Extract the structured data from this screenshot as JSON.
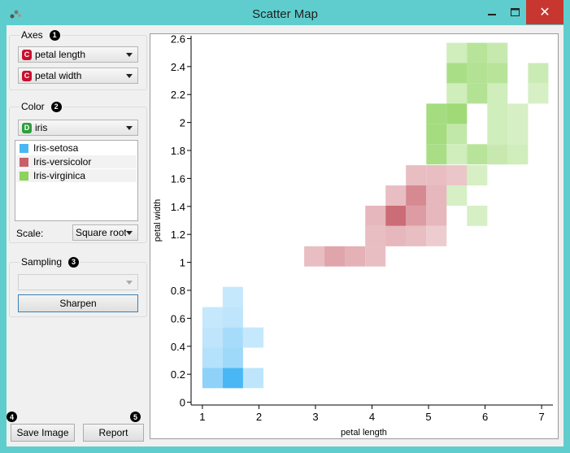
{
  "window": {
    "title": "Scatter Map",
    "close_glyph": "✕"
  },
  "axes": {
    "title": "Axes",
    "badge": "1",
    "x_attr": "petal length",
    "y_attr": "petal width",
    "x_type": "C",
    "y_type": "C",
    "type_color": "#c8102e"
  },
  "color": {
    "title": "Color",
    "badge": "2",
    "attr": "iris",
    "attr_type": "D",
    "type_color": "#2e9e3a",
    "classes": [
      {
        "label": "Iris-setosa",
        "color": "#4ab7f5"
      },
      {
        "label": "Iris-versicolor",
        "color": "#c8606a"
      },
      {
        "label": "Iris-virginica",
        "color": "#8cd35c"
      }
    ],
    "scale_label": "Scale:",
    "scale_value": "Square root"
  },
  "sampling": {
    "title": "Sampling",
    "badge": "3",
    "value": "",
    "sharpen_label": "Sharpen"
  },
  "footer": {
    "badge_save": "4",
    "badge_report": "5",
    "save_label": "Save Image",
    "report_label": "Report"
  },
  "chart_data": {
    "type": "heatmap",
    "xlabel": "petal length",
    "ylabel": "petal width",
    "xlim": [
      0.8,
      7.2
    ],
    "ylim": [
      -0.02,
      2.62
    ],
    "xticks": [
      1,
      2,
      3,
      4,
      5,
      6,
      7
    ],
    "yticks": [
      0,
      0.2,
      0.4,
      0.6,
      0.8,
      1,
      1.2,
      1.4,
      1.6,
      1.8,
      2,
      2.2,
      2.4,
      2.6
    ],
    "ytick_labels": [
      "0",
      "0.2",
      "0.4",
      "0.6",
      "0.8",
      "1",
      "1.2",
      "1.4",
      "1.6",
      "1.8",
      "2",
      "2.2",
      "2.4",
      "2.6"
    ],
    "bin_width": 0.36,
    "bin_height": 0.145,
    "bins": [
      {
        "class": "Iris-setosa",
        "x": 1.0,
        "y": 0.1,
        "level": 0.55
      },
      {
        "class": "Iris-setosa",
        "x": 1.36,
        "y": 0.1,
        "level": 1.0
      },
      {
        "class": "Iris-setosa",
        "x": 1.72,
        "y": 0.1,
        "level": 0.25
      },
      {
        "class": "Iris-setosa",
        "x": 1.0,
        "y": 0.245,
        "level": 0.3
      },
      {
        "class": "Iris-setosa",
        "x": 1.36,
        "y": 0.245,
        "level": 0.45
      },
      {
        "class": "Iris-setosa",
        "x": 1.0,
        "y": 0.39,
        "level": 0.25
      },
      {
        "class": "Iris-setosa",
        "x": 1.36,
        "y": 0.39,
        "level": 0.4
      },
      {
        "class": "Iris-setosa",
        "x": 1.72,
        "y": 0.39,
        "level": 0.2
      },
      {
        "class": "Iris-setosa",
        "x": 1.0,
        "y": 0.535,
        "level": 0.2
      },
      {
        "class": "Iris-setosa",
        "x": 1.36,
        "y": 0.535,
        "level": 0.25
      },
      {
        "class": "Iris-setosa",
        "x": 1.36,
        "y": 0.68,
        "level": 0.2
      },
      {
        "class": "Iris-versicolor",
        "x": 2.8,
        "y": 0.97,
        "level": 0.3
      },
      {
        "class": "Iris-versicolor",
        "x": 3.16,
        "y": 0.97,
        "level": 0.5
      },
      {
        "class": "Iris-versicolor",
        "x": 3.52,
        "y": 0.97,
        "level": 0.4
      },
      {
        "class": "Iris-versicolor",
        "x": 3.88,
        "y": 0.97,
        "level": 0.3
      },
      {
        "class": "Iris-versicolor",
        "x": 3.88,
        "y": 1.115,
        "level": 0.3
      },
      {
        "class": "Iris-versicolor",
        "x": 4.24,
        "y": 1.115,
        "level": 0.35
      },
      {
        "class": "Iris-versicolor",
        "x": 4.6,
        "y": 1.115,
        "level": 0.3
      },
      {
        "class": "Iris-versicolor",
        "x": 4.96,
        "y": 1.115,
        "level": 0.2
      },
      {
        "class": "Iris-versicolor",
        "x": 3.88,
        "y": 1.26,
        "level": 0.35
      },
      {
        "class": "Iris-versicolor",
        "x": 4.24,
        "y": 1.26,
        "level": 0.9
      },
      {
        "class": "Iris-versicolor",
        "x": 4.6,
        "y": 1.26,
        "level": 0.55
      },
      {
        "class": "Iris-versicolor",
        "x": 4.96,
        "y": 1.26,
        "level": 0.35
      },
      {
        "class": "Iris-versicolor",
        "x": 4.24,
        "y": 1.405,
        "level": 0.3
      },
      {
        "class": "Iris-versicolor",
        "x": 4.6,
        "y": 1.405,
        "level": 0.7
      },
      {
        "class": "Iris-versicolor",
        "x": 4.96,
        "y": 1.405,
        "level": 0.35
      },
      {
        "class": "Iris-versicolor",
        "x": 4.6,
        "y": 1.55,
        "level": 0.3
      },
      {
        "class": "Iris-versicolor",
        "x": 4.96,
        "y": 1.55,
        "level": 0.3
      },
      {
        "class": "Iris-versicolor",
        "x": 5.32,
        "y": 1.55,
        "level": 0.25
      },
      {
        "class": "Iris-virginica",
        "x": 5.32,
        "y": 1.405,
        "level": 0.25
      },
      {
        "class": "Iris-virginica",
        "x": 5.68,
        "y": 1.26,
        "level": 0.25
      },
      {
        "class": "Iris-virginica",
        "x": 5.68,
        "y": 1.55,
        "level": 0.25
      },
      {
        "class": "Iris-virginica",
        "x": 4.96,
        "y": 1.7,
        "level": 0.7
      },
      {
        "class": "Iris-virginica",
        "x": 5.32,
        "y": 1.7,
        "level": 0.3
      },
      {
        "class": "Iris-virginica",
        "x": 5.68,
        "y": 1.7,
        "level": 0.55
      },
      {
        "class": "Iris-virginica",
        "x": 6.04,
        "y": 1.7,
        "level": 0.4
      },
      {
        "class": "Iris-virginica",
        "x": 6.4,
        "y": 1.7,
        "level": 0.3
      },
      {
        "class": "Iris-virginica",
        "x": 4.96,
        "y": 1.845,
        "level": 0.75
      },
      {
        "class": "Iris-virginica",
        "x": 5.32,
        "y": 1.845,
        "level": 0.45
      },
      {
        "class": "Iris-virginica",
        "x": 6.04,
        "y": 1.845,
        "level": 0.3
      },
      {
        "class": "Iris-virginica",
        "x": 6.4,
        "y": 1.845,
        "level": 0.25
      },
      {
        "class": "Iris-virginica",
        "x": 4.96,
        "y": 1.99,
        "level": 0.75
      },
      {
        "class": "Iris-virginica",
        "x": 5.32,
        "y": 1.99,
        "level": 0.8
      },
      {
        "class": "Iris-virginica",
        "x": 6.04,
        "y": 1.99,
        "level": 0.3
      },
      {
        "class": "Iris-virginica",
        "x": 6.4,
        "y": 1.99,
        "level": 0.25
      },
      {
        "class": "Iris-virginica",
        "x": 5.32,
        "y": 2.135,
        "level": 0.3
      },
      {
        "class": "Iris-virginica",
        "x": 5.68,
        "y": 2.135,
        "level": 0.6
      },
      {
        "class": "Iris-virginica",
        "x": 6.04,
        "y": 2.135,
        "level": 0.3
      },
      {
        "class": "Iris-virginica",
        "x": 6.76,
        "y": 2.135,
        "level": 0.25
      },
      {
        "class": "Iris-virginica",
        "x": 5.32,
        "y": 2.28,
        "level": 0.7
      },
      {
        "class": "Iris-virginica",
        "x": 5.68,
        "y": 2.28,
        "level": 0.6
      },
      {
        "class": "Iris-virginica",
        "x": 6.04,
        "y": 2.28,
        "level": 0.55
      },
      {
        "class": "Iris-virginica",
        "x": 6.76,
        "y": 2.28,
        "level": 0.35
      },
      {
        "class": "Iris-virginica",
        "x": 5.32,
        "y": 2.425,
        "level": 0.3
      },
      {
        "class": "Iris-virginica",
        "x": 5.68,
        "y": 2.425,
        "level": 0.55
      },
      {
        "class": "Iris-virginica",
        "x": 6.04,
        "y": 2.425,
        "level": 0.4
      }
    ]
  }
}
